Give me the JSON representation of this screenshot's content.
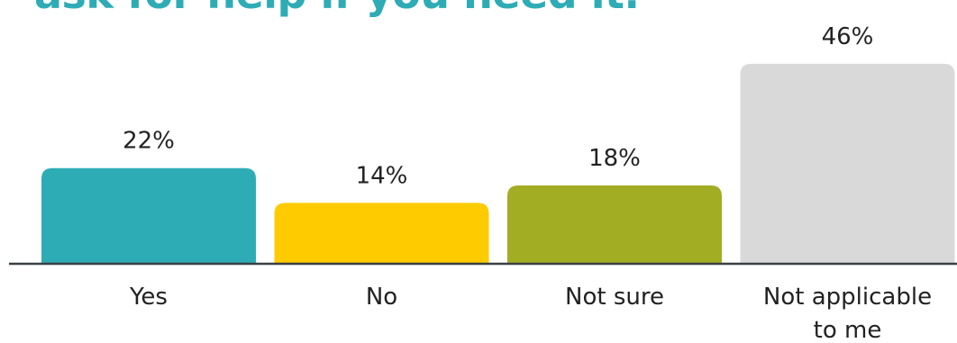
{
  "title": "ask for help if you need it.",
  "chart_data": {
    "type": "bar",
    "title": "ask for help if you need it.",
    "categories": [
      "Yes",
      "No",
      "Not sure",
      "Not applicable to me"
    ],
    "category_lines": [
      [
        "Yes"
      ],
      [
        "No"
      ],
      [
        "Not sure"
      ],
      [
        "Not applicable",
        "to me"
      ]
    ],
    "values": [
      22,
      14,
      18,
      46
    ],
    "value_labels": [
      "22%",
      "14%",
      "18%",
      "46%"
    ],
    "unit": "%",
    "colors": [
      "#2eacb6",
      "#fecb00",
      "#a2ad23",
      "#d9d9d9"
    ],
    "baseline_color": "#3a3f44",
    "grid": false,
    "xlabel": "",
    "ylabel": ""
  }
}
